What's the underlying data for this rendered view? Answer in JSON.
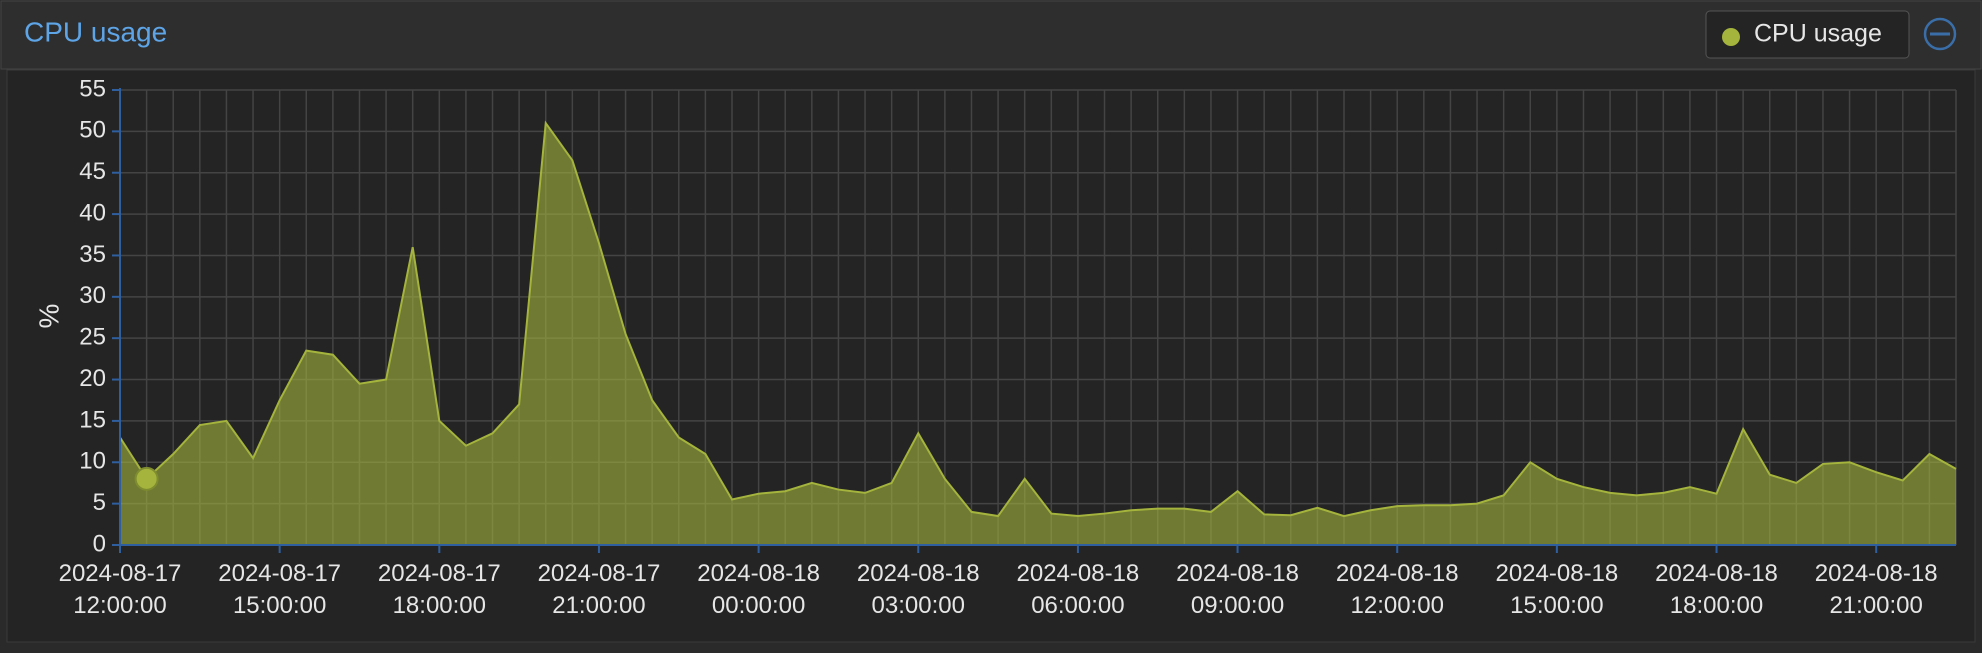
{
  "chart_data": {
    "type": "area",
    "title": "CPU usage",
    "y_label": "%",
    "x": [
      "2024-08-17 12:00:00",
      "2024-08-17 12:30:00",
      "2024-08-17 13:00:00",
      "2024-08-17 13:30:00",
      "2024-08-17 14:00:00",
      "2024-08-17 14:30:00",
      "2024-08-17 15:00:00",
      "2024-08-17 15:30:00",
      "2024-08-17 16:00:00",
      "2024-08-17 16:30:00",
      "2024-08-17 17:00:00",
      "2024-08-17 17:30:00",
      "2024-08-17 18:00:00",
      "2024-08-17 18:30:00",
      "2024-08-17 19:00:00",
      "2024-08-17 19:30:00",
      "2024-08-17 20:00:00",
      "2024-08-17 20:30:00",
      "2024-08-17 21:00:00",
      "2024-08-17 21:30:00",
      "2024-08-17 22:00:00",
      "2024-08-17 22:30:00",
      "2024-08-17 23:00:00",
      "2024-08-17 23:30:00",
      "2024-08-18 00:00:00",
      "2024-08-18 00:30:00",
      "2024-08-18 01:00:00",
      "2024-08-18 01:30:00",
      "2024-08-18 02:00:00",
      "2024-08-18 02:30:00",
      "2024-08-18 03:00:00",
      "2024-08-18 03:30:00",
      "2024-08-18 04:00:00",
      "2024-08-18 04:30:00",
      "2024-08-18 05:00:00",
      "2024-08-18 05:30:00",
      "2024-08-18 06:00:00",
      "2024-08-18 06:30:00",
      "2024-08-18 07:00:00",
      "2024-08-18 07:30:00",
      "2024-08-18 08:00:00",
      "2024-08-18 08:30:00",
      "2024-08-18 09:00:00",
      "2024-08-18 09:30:00",
      "2024-08-18 10:00:00",
      "2024-08-18 10:30:00",
      "2024-08-18 11:00:00",
      "2024-08-18 11:30:00",
      "2024-08-18 12:00:00",
      "2024-08-18 12:30:00",
      "2024-08-18 13:00:00",
      "2024-08-18 13:30:00",
      "2024-08-18 14:00:00",
      "2024-08-18 14:30:00",
      "2024-08-18 15:00:00",
      "2024-08-18 15:30:00",
      "2024-08-18 16:00:00",
      "2024-08-18 16:30:00",
      "2024-08-18 17:00:00",
      "2024-08-18 17:30:00",
      "2024-08-18 18:00:00",
      "2024-08-18 18:30:00",
      "2024-08-18 19:00:00",
      "2024-08-18 19:30:00",
      "2024-08-18 20:00:00",
      "2024-08-18 20:30:00",
      "2024-08-18 21:00:00",
      "2024-08-18 21:30:00",
      "2024-08-18 22:00:00",
      "2024-08-18 22:30:00"
    ],
    "series": [
      {
        "name": "CPU usage",
        "color": "#a4b43c",
        "values": [
          13,
          8,
          11,
          14.5,
          15,
          10.5,
          17.5,
          23.5,
          23,
          19.5,
          20,
          36,
          15,
          12,
          13.5,
          17,
          51,
          46.5,
          36.5,
          25.5,
          17.5,
          13,
          11,
          5.5,
          6.2,
          6.5,
          7.5,
          6.7,
          6.3,
          7.5,
          13.5,
          8,
          4,
          3.5,
          8,
          3.8,
          3.5,
          3.8,
          4.2,
          4.4,
          4.4,
          4,
          6.5,
          3.7,
          3.6,
          4.5,
          3.5,
          4.2,
          4.7,
          4.8,
          4.8,
          5,
          6,
          10,
          8,
          7,
          6.3,
          6,
          6.3,
          7,
          6.2,
          14,
          8.5,
          7.5,
          9.8,
          10,
          8.8,
          7.8,
          11,
          9.2
        ]
      }
    ],
    "xlim": [
      "2024-08-17 12:00:00",
      "2024-08-18 22:30:00"
    ],
    "xticks": [
      "2024-08-17 12:00:00",
      "2024-08-17 15:00:00",
      "2024-08-17 18:00:00",
      "2024-08-17 21:00:00",
      "2024-08-18 00:00:00",
      "2024-08-18 03:00:00",
      "2024-08-18 06:00:00",
      "2024-08-18 09:00:00",
      "2024-08-18 12:00:00",
      "2024-08-18 15:00:00",
      "2024-08-18 18:00:00",
      "2024-08-18 21:00:00"
    ],
    "ylim": [
      0,
      55
    ],
    "yticks": [
      0,
      5,
      10,
      15,
      20,
      25,
      30,
      35,
      40,
      45,
      50,
      55
    ],
    "grid": true
  }
}
